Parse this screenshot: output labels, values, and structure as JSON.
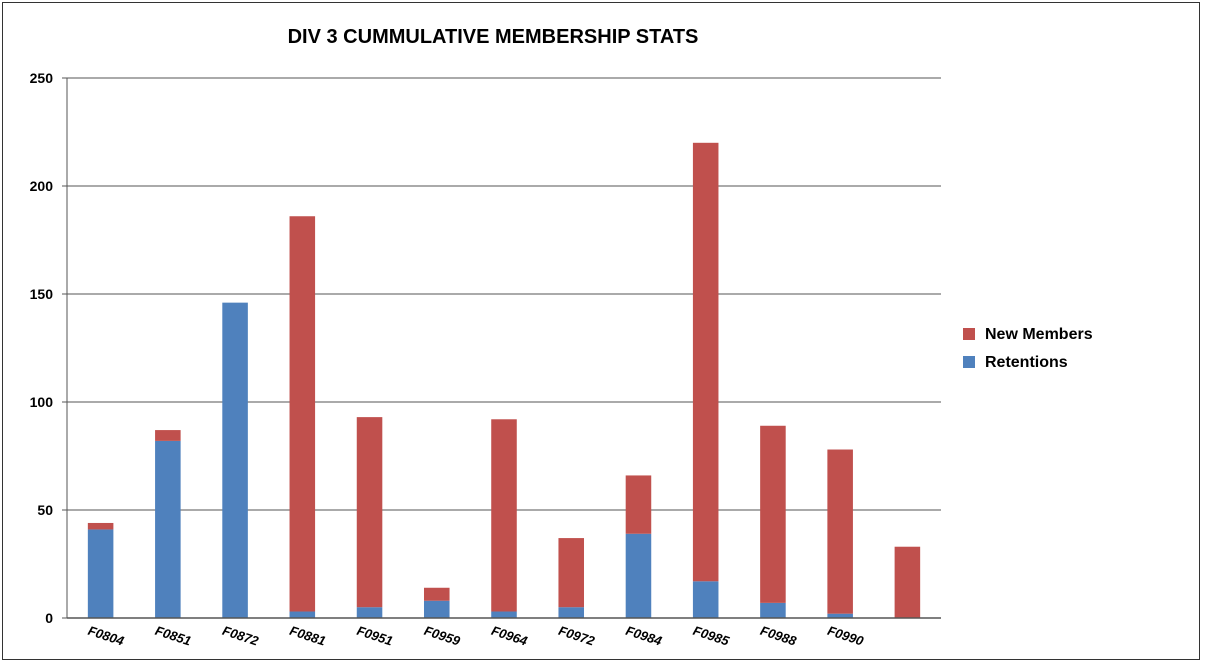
{
  "chart_data": {
    "type": "bar",
    "stacked": true,
    "title": "DIV 3 CUMMULATIVE  MEMBERSHIP STATS",
    "categories": [
      "F0804",
      "F0851",
      "F0872",
      "F0881",
      "F0951",
      "F0959",
      "F0964",
      "F0972",
      "F0984",
      "F0985",
      "F0988",
      "F0990",
      ""
    ],
    "series": [
      {
        "name": "Retentions",
        "color": "#4f81bd",
        "values": [
          41,
          82,
          146,
          3,
          5,
          8,
          3,
          5,
          39,
          17,
          7,
          2,
          0
        ]
      },
      {
        "name": "New Members",
        "color": "#c0504d",
        "values": [
          3,
          5,
          0,
          183,
          88,
          6,
          89,
          32,
          27,
          203,
          82,
          76,
          33
        ]
      }
    ],
    "ylim": [
      0,
      250
    ],
    "yticks": [
      0,
      50,
      100,
      150,
      200,
      250
    ],
    "grid": true,
    "legend": "right",
    "xlabel": "",
    "ylabel": ""
  }
}
